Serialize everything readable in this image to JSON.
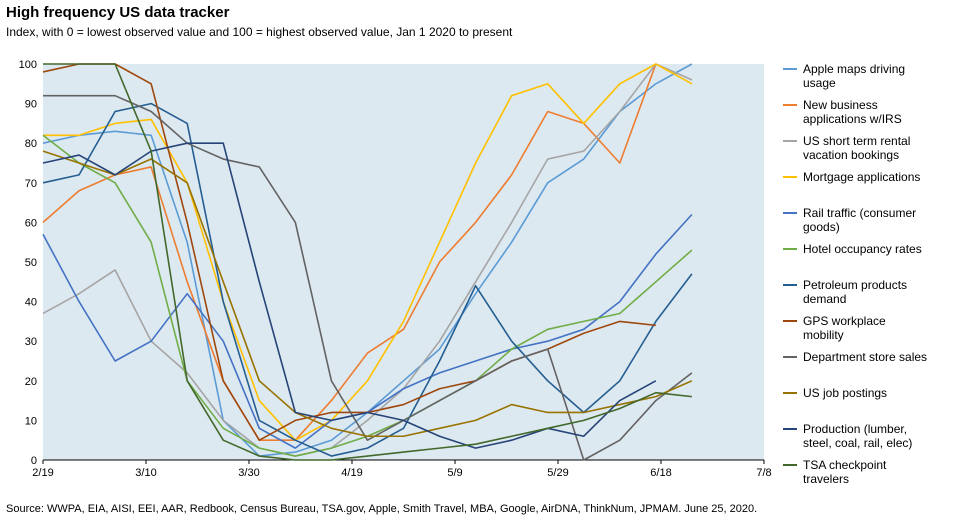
{
  "chart_data": {
    "type": "line",
    "title": "High frequency US data tracker",
    "subtitle": "Index, with 0 = lowest observed value and 100 = highest observed value, Jan 1 2020 to present",
    "source": "Source:  WWPA, EIA, AISI, EEI, AAR, Redbook, Census Bureau, TSA.gov, Apple, Smith Travel, MBA, Google, AirDNA, ThinkNum,  JPMAM. June 25, 2020.",
    "x": [
      "2/19",
      "2/26",
      "3/4",
      "3/11",
      "3/18",
      "3/25",
      "4/1",
      "4/8",
      "4/15",
      "4/22",
      "4/29",
      "5/6",
      "5/13",
      "5/20",
      "5/27",
      "6/3",
      "6/10",
      "6/17",
      "6/24"
    ],
    "xlim": [
      "2/19",
      "7/8"
    ],
    "xticks": [
      "2/19",
      "3/10",
      "3/30",
      "4/19",
      "5/9",
      "5/29",
      "6/18",
      "7/8"
    ],
    "ylim": [
      0,
      100
    ],
    "yticks": [
      0,
      10,
      20,
      30,
      40,
      50,
      60,
      70,
      80,
      90,
      100
    ],
    "grid": false,
    "plot_background": "#dde9f1",
    "series": [
      {
        "name": "Apple maps driving usage",
        "color": "#5b9bd5",
        "values": [
          80,
          82,
          83,
          82,
          55,
          10,
          1,
          2,
          5,
          12,
          20,
          28,
          42,
          55,
          70,
          76,
          88,
          95,
          100
        ]
      },
      {
        "name": "New business applications w/IRS",
        "color": "#ed7d31",
        "values": [
          60,
          68,
          72,
          74,
          45,
          20,
          5,
          5,
          15,
          27,
          33,
          50,
          60,
          72,
          88,
          85,
          75,
          100,
          null
        ]
      },
      {
        "name": "US short term rental vacation bookings",
        "color": "#a5a5a5",
        "values": [
          37,
          42,
          48,
          30,
          22,
          10,
          3,
          1,
          3,
          10,
          18,
          30,
          45,
          60,
          76,
          78,
          88,
          100,
          96
        ]
      },
      {
        "name": "Mortgage applications",
        "color": "#ffc000",
        "values": [
          82,
          82,
          85,
          86,
          70,
          40,
          15,
          5,
          10,
          20,
          35,
          55,
          75,
          92,
          95,
          85,
          95,
          100,
          95
        ]
      },
      {
        "name": "Rail traffic (consumer goods)",
        "color": "#4472c4",
        "values": [
          57,
          40,
          25,
          30,
          42,
          30,
          8,
          3,
          10,
          12,
          18,
          22,
          25,
          28,
          30,
          33,
          40,
          52,
          62
        ]
      },
      {
        "name": "Hotel occupancy rates",
        "color": "#70ad47",
        "values": [
          82,
          75,
          70,
          55,
          20,
          8,
          3,
          1,
          3,
          6,
          10,
          15,
          20,
          28,
          33,
          35,
          37,
          45,
          53
        ]
      },
      {
        "name": "Petroleum products demand",
        "color": "#255e91",
        "values": [
          70,
          72,
          88,
          90,
          85,
          40,
          10,
          5,
          1,
          3,
          8,
          25,
          44,
          30,
          20,
          12,
          20,
          35,
          47
        ]
      },
      {
        "name": "GPS workplace mobility",
        "color": "#9e480e",
        "values": [
          98,
          100,
          100,
          95,
          60,
          20,
          5,
          10,
          12,
          12,
          14,
          18,
          20,
          25,
          28,
          32,
          35,
          34,
          null
        ]
      },
      {
        "name": "Department store sales",
        "color": "#636363",
        "values": [
          92,
          92,
          92,
          88,
          80,
          76,
          74,
          60,
          20,
          5,
          10,
          15,
          20,
          25,
          28,
          0,
          5,
          15,
          22
        ]
      },
      {
        "name": "US job postings",
        "color": "#997300",
        "values": [
          78,
          75,
          72,
          76,
          70,
          45,
          20,
          12,
          8,
          6,
          6,
          8,
          10,
          14,
          12,
          12,
          14,
          16,
          20
        ]
      },
      {
        "name": "Production (lumber, steel, coal, rail, elec)",
        "color": "#264478",
        "values": [
          75,
          77,
          72,
          78,
          80,
          80,
          45,
          12,
          10,
          12,
          10,
          6,
          3,
          5,
          8,
          6,
          15,
          20,
          null
        ]
      },
      {
        "name": "TSA checkpoint travelers",
        "color": "#43682b",
        "values": [
          100,
          100,
          100,
          78,
          20,
          5,
          1,
          0,
          0,
          1,
          2,
          3,
          4,
          6,
          8,
          10,
          13,
          17,
          16
        ]
      }
    ]
  }
}
